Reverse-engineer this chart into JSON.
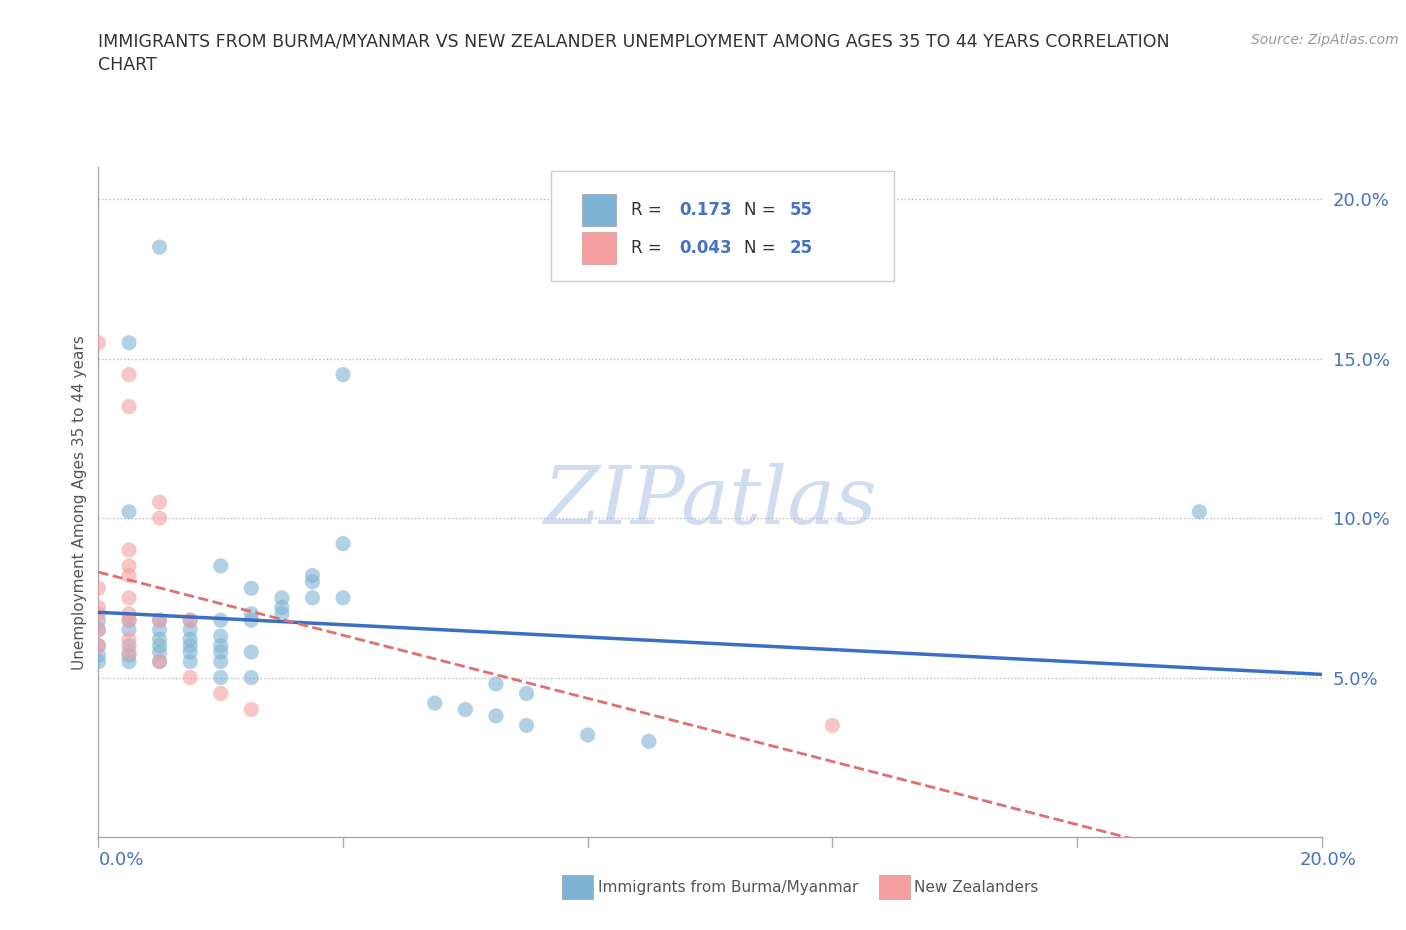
{
  "title_line1": "IMMIGRANTS FROM BURMA/MYANMAR VS NEW ZEALANDER UNEMPLOYMENT AMONG AGES 35 TO 44 YEARS CORRELATION",
  "title_line2": "CHART",
  "source": "Source: ZipAtlas.com",
  "ylabel": "Unemployment Among Ages 35 to 44 years",
  "xlim": [
    0.0,
    0.2
  ],
  "ylim": [
    0.0,
    0.21
  ],
  "yticks": [
    0.05,
    0.1,
    0.15,
    0.2
  ],
  "ytick_labels": [
    "5.0%",
    "10.0%",
    "15.0%",
    "20.0%"
  ],
  "blue_color": "#7fb3d3",
  "pink_color": "#f4a0a0",
  "blue_line_color": "#3a6fc4",
  "pink_line_color": "#e07070",
  "blue_scatter": [
    [
      0.01,
      0.185
    ],
    [
      0.005,
      0.155
    ],
    [
      0.04,
      0.145
    ],
    [
      0.005,
      0.102
    ],
    [
      0.18,
      0.102
    ],
    [
      0.04,
      0.092
    ],
    [
      0.02,
      0.085
    ],
    [
      0.035,
      0.082
    ],
    [
      0.035,
      0.08
    ],
    [
      0.025,
      0.078
    ],
    [
      0.03,
      0.075
    ],
    [
      0.035,
      0.075
    ],
    [
      0.04,
      0.075
    ],
    [
      0.03,
      0.072
    ],
    [
      0.025,
      0.07
    ],
    [
      0.03,
      0.07
    ],
    [
      0.025,
      0.068
    ],
    [
      0.02,
      0.068
    ],
    [
      0.015,
      0.068
    ],
    [
      0.01,
      0.068
    ],
    [
      0.005,
      0.068
    ],
    [
      0.0,
      0.068
    ],
    [
      0.015,
      0.065
    ],
    [
      0.01,
      0.065
    ],
    [
      0.005,
      0.065
    ],
    [
      0.0,
      0.065
    ],
    [
      0.02,
      0.063
    ],
    [
      0.015,
      0.062
    ],
    [
      0.01,
      0.062
    ],
    [
      0.02,
      0.06
    ],
    [
      0.015,
      0.06
    ],
    [
      0.01,
      0.06
    ],
    [
      0.005,
      0.06
    ],
    [
      0.0,
      0.06
    ],
    [
      0.025,
      0.058
    ],
    [
      0.02,
      0.058
    ],
    [
      0.015,
      0.058
    ],
    [
      0.01,
      0.058
    ],
    [
      0.005,
      0.057
    ],
    [
      0.0,
      0.057
    ],
    [
      0.02,
      0.055
    ],
    [
      0.015,
      0.055
    ],
    [
      0.01,
      0.055
    ],
    [
      0.005,
      0.055
    ],
    [
      0.0,
      0.055
    ],
    [
      0.025,
      0.05
    ],
    [
      0.02,
      0.05
    ],
    [
      0.065,
      0.048
    ],
    [
      0.07,
      0.045
    ],
    [
      0.055,
      0.042
    ],
    [
      0.06,
      0.04
    ],
    [
      0.065,
      0.038
    ],
    [
      0.07,
      0.035
    ],
    [
      0.08,
      0.032
    ],
    [
      0.09,
      0.03
    ]
  ],
  "pink_scatter": [
    [
      0.0,
      0.155
    ],
    [
      0.005,
      0.145
    ],
    [
      0.005,
      0.135
    ],
    [
      0.01,
      0.105
    ],
    [
      0.01,
      0.1
    ],
    [
      0.005,
      0.09
    ],
    [
      0.005,
      0.085
    ],
    [
      0.005,
      0.082
    ],
    [
      0.0,
      0.078
    ],
    [
      0.005,
      0.075
    ],
    [
      0.0,
      0.072
    ],
    [
      0.005,
      0.07
    ],
    [
      0.0,
      0.07
    ],
    [
      0.005,
      0.068
    ],
    [
      0.015,
      0.068
    ],
    [
      0.01,
      0.068
    ],
    [
      0.0,
      0.065
    ],
    [
      0.005,
      0.062
    ],
    [
      0.0,
      0.06
    ],
    [
      0.005,
      0.058
    ],
    [
      0.01,
      0.055
    ],
    [
      0.015,
      0.05
    ],
    [
      0.02,
      0.045
    ],
    [
      0.025,
      0.04
    ],
    [
      0.12,
      0.035
    ]
  ],
  "watermark_text": "ZIPatlas",
  "watermark_color": "#c8d8ee"
}
